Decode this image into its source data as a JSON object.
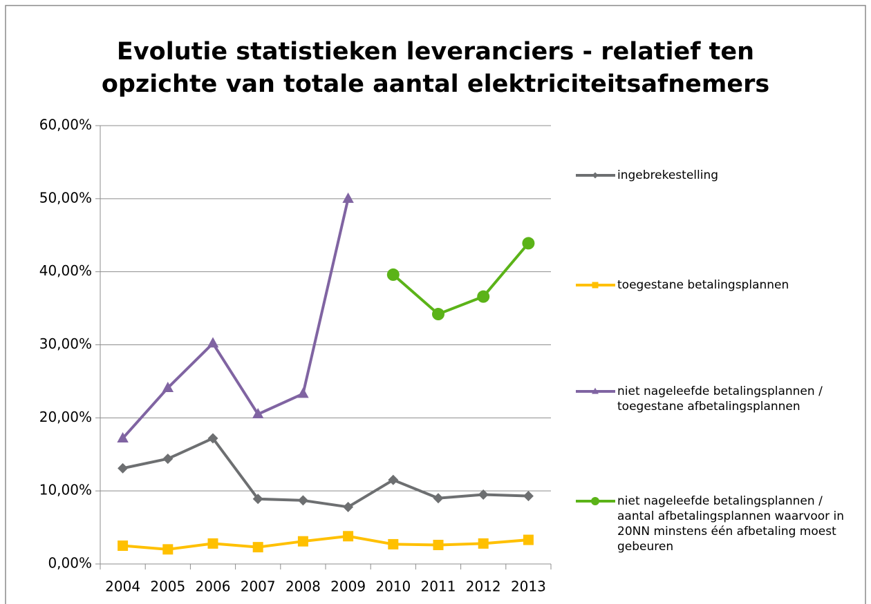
{
  "chart_data": {
    "type": "line",
    "title": "Evolutie statistieken leveranciers - relatief ten opzichte van totale aantal elektriciteitsafnemers",
    "categories": [
      "2004",
      "2005",
      "2006",
      "2007",
      "2008",
      "2009",
      "2010",
      "2011",
      "2012",
      "2013"
    ],
    "series": [
      {
        "name": "ingebrekestelling",
        "color": "#6d6f71",
        "marker": "diamond",
        "values": [
          13.1,
          14.4,
          17.2,
          8.9,
          8.7,
          7.8,
          11.5,
          9.0,
          9.5,
          9.3
        ]
      },
      {
        "name": "toegestane betalingsplannen",
        "color": "#ffc000",
        "marker": "square",
        "values": [
          2.5,
          2.0,
          2.8,
          2.3,
          3.1,
          3.8,
          2.7,
          2.6,
          2.8,
          3.3
        ]
      },
      {
        "name": "niet nageleefde betalingsplannen / toegestane afbetalingsplannen",
        "color": "#8064a2",
        "marker": "triangle",
        "values": [
          17.2,
          24.1,
          30.2,
          20.5,
          23.3,
          50.0,
          null,
          null,
          null,
          null
        ]
      },
      {
        "name": "niet nageleefde betalingsplannen / aantal afbetalingsplannen waarvoor in 20NN minstens één afbetaling moest gebeuren",
        "color": "#5bb318",
        "marker": "circle",
        "values": [
          null,
          null,
          null,
          null,
          null,
          null,
          39.6,
          34.2,
          36.6,
          43.9
        ]
      }
    ],
    "ylim": [
      0,
      60
    ],
    "yticks": [
      {
        "value": 0,
        "label": "0,00%"
      },
      {
        "value": 10,
        "label": "10,00%"
      },
      {
        "value": 20,
        "label": "20,00%"
      },
      {
        "value": 30,
        "label": "30,00%"
      },
      {
        "value": 40,
        "label": "40,00%"
      },
      {
        "value": 50,
        "label": "50,00%"
      },
      {
        "value": 60,
        "label": "60,00%"
      }
    ],
    "grid": true,
    "legend": "right"
  }
}
